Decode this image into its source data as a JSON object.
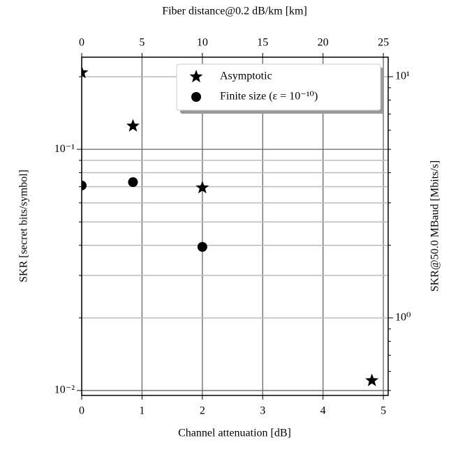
{
  "chart_data": {
    "type": "scatter",
    "xlabel": "Channel attenuation [dB]",
    "ylabel": "SKR [secret bits/symbol]",
    "x2label": "Fiber distance@0.2 dB/km [km]",
    "y2label": "SKR@50.0 MBaud [Mbits/s]",
    "xlim": [
      0,
      5.08
    ],
    "xticks": [
      0,
      1,
      2,
      3,
      4,
      5
    ],
    "x2lim": [
      0,
      25.4
    ],
    "x2ticks": [
      0,
      5,
      10,
      15,
      20,
      25
    ],
    "ylim": [
      0.00954,
      0.241
    ],
    "yscale": "log",
    "yticks": [
      {
        "value": 0.1,
        "label": "10⁻¹"
      },
      {
        "value": 0.01,
        "label": "10⁻²"
      }
    ],
    "yminorticks": [
      0.02,
      0.03,
      0.04,
      0.05,
      0.06,
      0.07,
      0.08,
      0.09,
      0.2
    ],
    "y2lim": [
      0.477,
      12.05
    ],
    "y2ticks": [
      {
        "value": 1,
        "label": "10⁰"
      },
      {
        "value": 10,
        "label": "10¹"
      }
    ],
    "y2minorticks": [
      0.5,
      0.6,
      0.7,
      0.8,
      0.9,
      2,
      3,
      4,
      5,
      6,
      7,
      8,
      9
    ],
    "grid": true,
    "legend": "upper right",
    "series": [
      {
        "name": "Asymptotic",
        "marker": "star",
        "color": "#000000",
        "x": [
          0,
          0.85,
          2.0,
          4.81
        ],
        "values": [
          0.208,
          0.125,
          0.0693,
          0.011
        ]
      },
      {
        "name": "Finite size (ε = 10⁻¹⁰)",
        "marker": "circle",
        "color": "#000000",
        "x": [
          0,
          0.85,
          2.0
        ],
        "values": [
          0.0708,
          0.0731,
          0.0394
        ]
      }
    ]
  }
}
